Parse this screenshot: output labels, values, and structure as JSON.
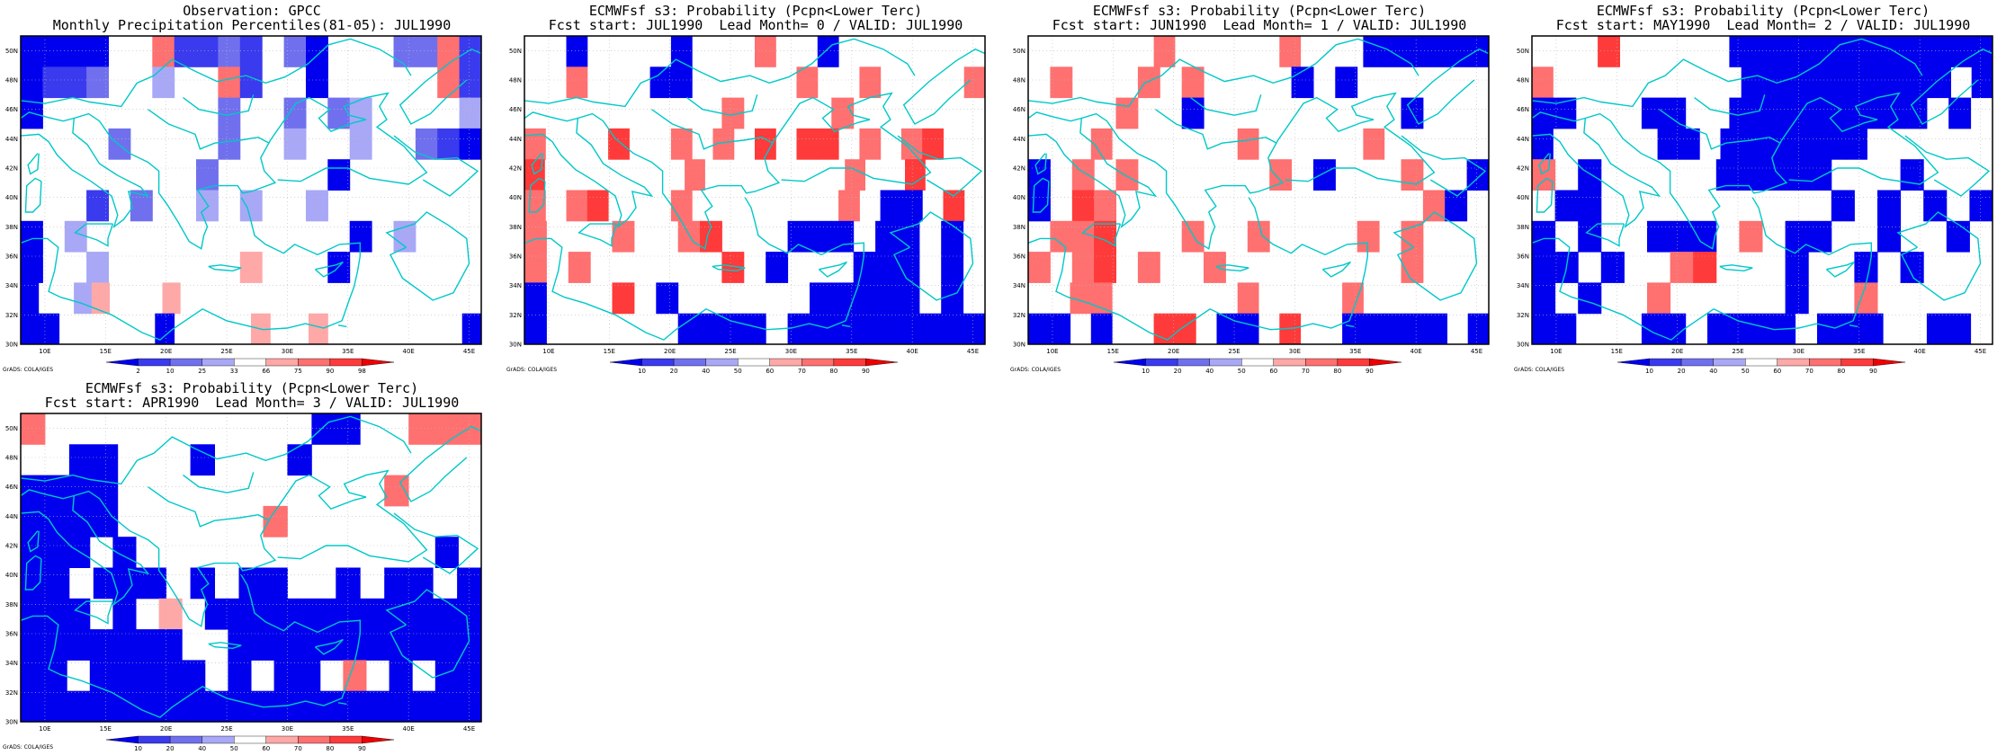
{
  "colors": {
    "blues": [
      "#0000ee",
      "#3a3aee",
      "#7070ee",
      "#a8a8f6"
    ],
    "reds": [
      "#ffa8a8",
      "#ff7070",
      "#ff3a3a",
      "#ee0000"
    ],
    "coast": "#00c8c8",
    "grid": "#bbbbbb"
  },
  "lat_labels": [
    "50N",
    "48N",
    "46N",
    "44N",
    "42N",
    "40N",
    "38N",
    "36N",
    "34N",
    "32N",
    "30N"
  ],
  "lon_labels": [
    "10E",
    "15E",
    "20E",
    "25E",
    "30E",
    "35E",
    "40E",
    "45E"
  ],
  "credit": "GrADS: COLA/IGES",
  "panels": [
    {
      "title": "Observation: GPCC",
      "subtitle": "Monthly Precipitation Percentiles(81-05): JUL1990",
      "colorbar": [
        "2",
        "10",
        "25",
        "33",
        "66",
        "75",
        "90",
        "98"
      ],
      "grid": [
        "bbbb..12232.3b...3312",
        "b223..4..12..b.....12",
        "b........3..3.34....4",
        "....3....3..4..4..32b",
        "........3.....b......",
        "...2.3..4.4..4.......",
        "b.4............b.4...",
        "b..4......a...b......",
        "b..4a...a.................",
        "bb.....b....a..a.......b"
      ]
    },
    {
      "title": "ECMWFsf s3: Probability (Pcpn<Lower Terc)",
      "subtitle": "Fcst start: JUL1990  Lead Month= 0 / VALID: JUL1990",
      "colorbar": [
        "10",
        "20",
        "40",
        "50",
        "60",
        "70",
        "80",
        "90"
      ],
      "grid": [
        "..b....b...c..b.......",
        "..c...bb.....c..c....c",
        ".........c....c......",
        "c...d..c.c.d.dd.c.cd..",
        "d.......c.......c..d...",
        "c.cd...c.......c.bb.d.",
        "c...c..cd...bbb.bb.b.",
        "c.c......d.b...bbb.b.",
        "b...d.b......bbbbb.b.",
        "b......bbbb.bbbbbbbbb"
      ]
    },
    {
      "title": "ECMWFsf s3: Probability (Pcpn<Lower Terc)",
      "subtitle": "Fcst start: JUN1990  Lead Month= 1 / VALID: JUL1990",
      "colorbar": [
        "10",
        "20",
        "40",
        "50",
        "60",
        "70",
        "80",
        "90"
      ],
      "grid": [
        "......c.....c...bbbbbb",
        ".c...c.c....b.b......",
        "....c..b.........b...",
        "...c......c.....c.....",
        "b.c.c......c.b...c..b",
        "b.dc..............cb.",
        ".ccd...c..c....c.c...",
        "c.cd.c..c........c...",
        "..cc......c....c......",
        "bb.b..dd.bb.d..bbbbb.b"
      ]
    },
    {
      "title": "ECMWFsf s3: Probability (Pcpn<Lower Terc)",
      "subtitle": "Fcst start: MAY1990  Lead Month= 2 / VALID: JUL1990",
      "colorbar": [
        "10",
        "20",
        "40",
        "50",
        "60",
        "70",
        "80",
        "90"
      ],
      "grid": [
        "...d.....bbbbbbbbbbbb",
        "c.........bbbbbbbbbb.b",
        "bb...bb..bbbbbbbbb.b.",
        "b.....bb.bbbbbbb......",
        "c.b.....bbbbb...b...",
        ".bb..........b.b.b.b",
        "b.b..bbb.c.bb..b..b.",
        "bb.b..cd...b..b.b...",
        "b.b..c.....b..c.....",
        "bb...bb.bbbb.bbb..bb."
      ]
    },
    {
      "title": "ECMWFsf s3: Probability (Pcpn<Lower Terc)",
      "subtitle": "Fcst start: APR1990  Lead Month= 3 / VALID: JUL1990",
      "colorbar": [
        "10",
        "20",
        "40",
        "50",
        "60",
        "70",
        "80",
        "90"
      ],
      "grid": [
        "c...........bb..ccc",
        "..bb...b...b.......",
        "bbbb...........c...",
        "bbbb......c........",
        "bbb.b.............b.",
        "bb.bbb.b.bb..b.bb.b",
        "bbb.b.a.bbbbbbbbbbbb",
        "bbbbbbb..bbbbbbbbbbb",
        "bb.bbbbb.b.bb.c.b.bb",
        "bbbbbbbbbbbbbbbbbbbb"
      ]
    }
  ]
}
